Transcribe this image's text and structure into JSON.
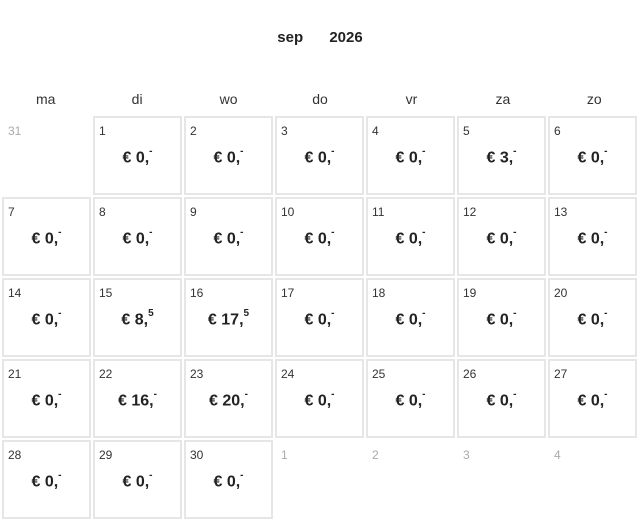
{
  "header": {
    "month": "sep",
    "year": "2026"
  },
  "weekdays": [
    "ma",
    "di",
    "wo",
    "do",
    "vr",
    "za",
    "zo"
  ],
  "currency": "€",
  "days": [
    {
      "day": "31",
      "other": true
    },
    {
      "day": "1",
      "amount": "0,",
      "cents": "-"
    },
    {
      "day": "2",
      "amount": "0,",
      "cents": "-"
    },
    {
      "day": "3",
      "amount": "0,",
      "cents": "-"
    },
    {
      "day": "4",
      "amount": "0,",
      "cents": "-"
    },
    {
      "day": "5",
      "amount": "3,",
      "cents": "-"
    },
    {
      "day": "6",
      "amount": "0,",
      "cents": "-"
    },
    {
      "day": "7",
      "amount": "0,",
      "cents": "-"
    },
    {
      "day": "8",
      "amount": "0,",
      "cents": "-"
    },
    {
      "day": "9",
      "amount": "0,",
      "cents": "-"
    },
    {
      "day": "10",
      "amount": "0,",
      "cents": "-"
    },
    {
      "day": "11",
      "amount": "0,",
      "cents": "-"
    },
    {
      "day": "12",
      "amount": "0,",
      "cents": "-"
    },
    {
      "day": "13",
      "amount": "0,",
      "cents": "-"
    },
    {
      "day": "14",
      "amount": "0,",
      "cents": "-"
    },
    {
      "day": "15",
      "amount": "8,",
      "cents": "5"
    },
    {
      "day": "16",
      "amount": "17,",
      "cents": "5"
    },
    {
      "day": "17",
      "amount": "0,",
      "cents": "-"
    },
    {
      "day": "18",
      "amount": "0,",
      "cents": "-"
    },
    {
      "day": "19",
      "amount": "0,",
      "cents": "-"
    },
    {
      "day": "20",
      "amount": "0,",
      "cents": "-"
    },
    {
      "day": "21",
      "amount": "0,",
      "cents": "-"
    },
    {
      "day": "22",
      "amount": "16,",
      "cents": "-"
    },
    {
      "day": "23",
      "amount": "20,",
      "cents": "-"
    },
    {
      "day": "24",
      "amount": "0,",
      "cents": "-"
    },
    {
      "day": "25",
      "amount": "0,",
      "cents": "-"
    },
    {
      "day": "26",
      "amount": "0,",
      "cents": "-"
    },
    {
      "day": "27",
      "amount": "0,",
      "cents": "-"
    },
    {
      "day": "28",
      "amount": "0,",
      "cents": "-"
    },
    {
      "day": "29",
      "amount": "0,",
      "cents": "-"
    },
    {
      "day": "30",
      "amount": "0,",
      "cents": "-"
    },
    {
      "day": "1",
      "other": true
    },
    {
      "day": "2",
      "other": true
    },
    {
      "day": "3",
      "other": true
    },
    {
      "day": "4",
      "other": true
    }
  ]
}
